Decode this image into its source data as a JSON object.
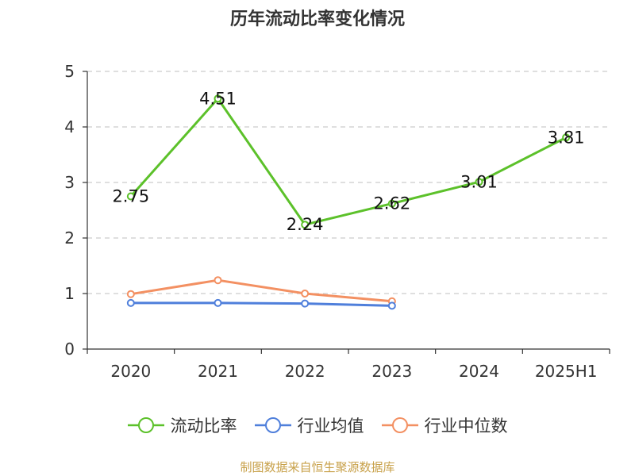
{
  "chart_data": {
    "type": "line",
    "title": "历年流动比率变化情况",
    "categories": [
      "2020",
      "2021",
      "2022",
      "2023",
      "2024",
      "2025H1"
    ],
    "ylim": [
      0,
      5
    ],
    "yticks": [
      "0",
      "1",
      "2",
      "3",
      "4",
      "5"
    ],
    "grid": true,
    "legend_position": "bottom",
    "series": [
      {
        "name": "流动比率",
        "color": "#5cc12a",
        "values": [
          2.75,
          4.51,
          2.24,
          2.62,
          3.01,
          3.81
        ],
        "labels": [
          "2.75",
          "4.51",
          "2.24",
          "2.62",
          "3.01",
          "3.81"
        ]
      },
      {
        "name": "行业均值",
        "color": "#4f7fdb",
        "values": [
          0.83,
          0.83,
          0.82,
          0.78,
          null,
          null
        ]
      },
      {
        "name": "行业中位数",
        "color": "#f39062",
        "values": [
          0.99,
          1.24,
          1.0,
          0.86,
          null,
          null
        ]
      }
    ]
  },
  "source": "制图数据来自恒生聚源数据库"
}
